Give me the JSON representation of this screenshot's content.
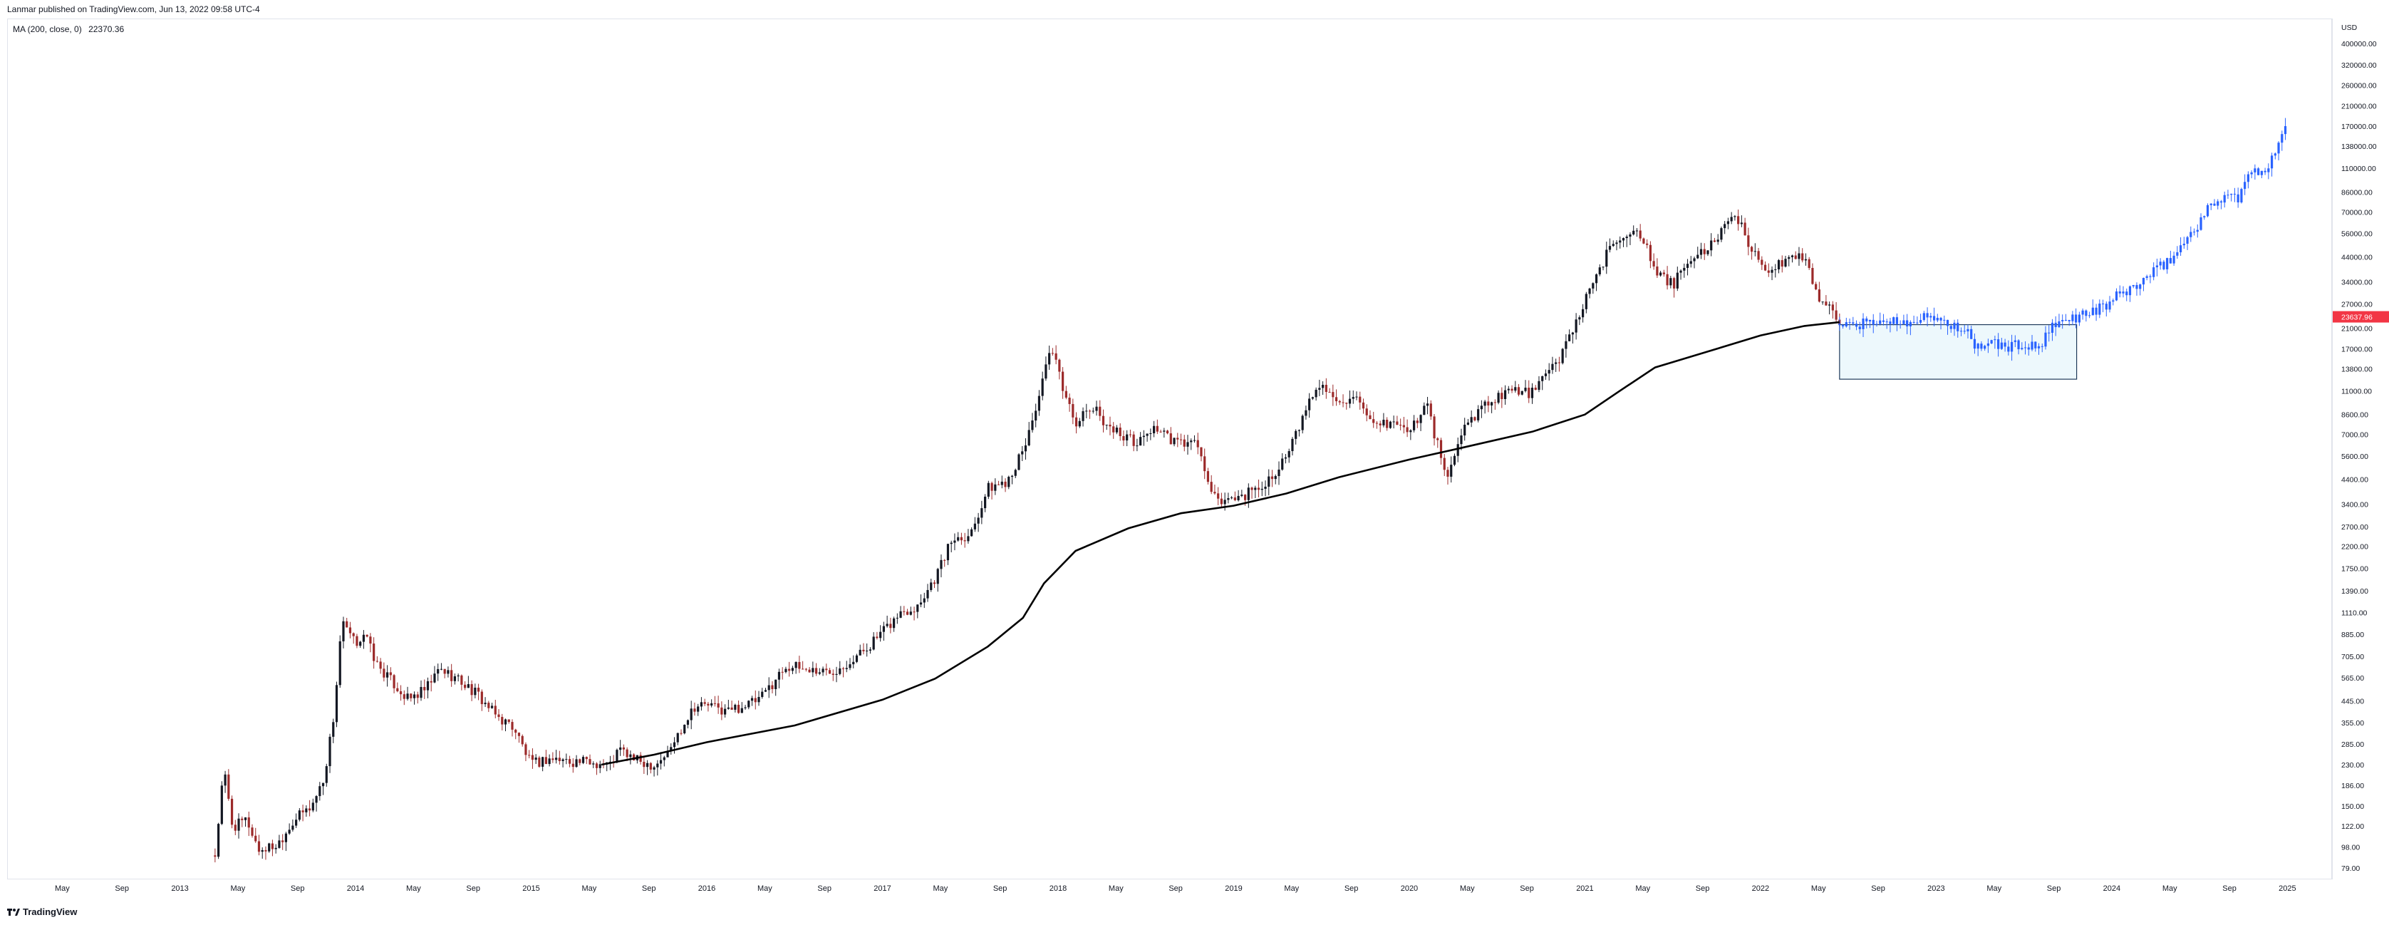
{
  "header": {
    "published": "Lanmar published on TradingView.com, Jun 13, 2022 09:58 UTC-4"
  },
  "legend": {
    "text": "MA (200, close, 0)",
    "value": "22370.36"
  },
  "footer": {
    "brand": "TradingView"
  },
  "price_badge": {
    "value": "23637.96",
    "color": "#f23645"
  },
  "colors": {
    "up": "#131722",
    "down": "#9c2a2a",
    "projection": "#2962ff",
    "ma": "#000000",
    "box_fill": "#e3f4fb",
    "box_stroke": "#1f3a5a"
  },
  "chart_data": {
    "type": "candlestick",
    "title": "",
    "y_scale": "log",
    "y_unit": "USD",
    "ylim": [
      75,
      470000
    ],
    "x_range": [
      "2012-04",
      "2025-03"
    ],
    "price_ticks": [
      79,
      98,
      122,
      150,
      186,
      230,
      285,
      355,
      445,
      565,
      705,
      885,
      1110,
      1390,
      1750,
      2200,
      2700,
      3400,
      4400,
      5600,
      7000,
      8600,
      11000,
      13800,
      17000,
      21000,
      27000,
      34000,
      44000,
      56000,
      70000,
      86000,
      110000,
      138000,
      170000,
      210000,
      260000,
      320000,
      400000
    ],
    "price_tick_labels": [
      "79.00",
      "98.00",
      "122.00",
      "150.00",
      "186.00",
      "230.00",
      "285.00",
      "355.00",
      "445.00",
      "565.00",
      "705.00",
      "885.00",
      "1110.00",
      "1390.00",
      "1750.00",
      "2200.00",
      "2700.00",
      "3400.00",
      "4400.00",
      "5600.00",
      "7000.00",
      "8600.00",
      "11000.00",
      "13800.00",
      "17000.00",
      "21000.00",
      "27000.00",
      "34000.00",
      "44000.00",
      "56000.00",
      "70000.00",
      "86000.00",
      "110000.00",
      "138000.00",
      "170000.00",
      "210000.00",
      "260000.00",
      "320000.00",
      "400000.00"
    ],
    "time_ticks": [
      {
        "label": "May",
        "t": 2012.33
      },
      {
        "label": "Sep",
        "t": 2012.67
      },
      {
        "label": "2013",
        "t": 2013.0
      },
      {
        "label": "May",
        "t": 2013.33
      },
      {
        "label": "Sep",
        "t": 2013.67
      },
      {
        "label": "2014",
        "t": 2014.0
      },
      {
        "label": "May",
        "t": 2014.33
      },
      {
        "label": "Sep",
        "t": 2014.67
      },
      {
        "label": "2015",
        "t": 2015.0
      },
      {
        "label": "May",
        "t": 2015.33
      },
      {
        "label": "Sep",
        "t": 2015.67
      },
      {
        "label": "2016",
        "t": 2016.0
      },
      {
        "label": "May",
        "t": 2016.33
      },
      {
        "label": "Sep",
        "t": 2016.67
      },
      {
        "label": "2017",
        "t": 2017.0
      },
      {
        "label": "May",
        "t": 2017.33
      },
      {
        "label": "Sep",
        "t": 2017.67
      },
      {
        "label": "2018",
        "t": 2018.0
      },
      {
        "label": "May",
        "t": 2018.33
      },
      {
        "label": "Sep",
        "t": 2018.67
      },
      {
        "label": "2019",
        "t": 2019.0
      },
      {
        "label": "May",
        "t": 2019.33
      },
      {
        "label": "Sep",
        "t": 2019.67
      },
      {
        "label": "2020",
        "t": 2020.0
      },
      {
        "label": "May",
        "t": 2020.33
      },
      {
        "label": "Sep",
        "t": 2020.67
      },
      {
        "label": "2021",
        "t": 2021.0
      },
      {
        "label": "May",
        "t": 2021.33
      },
      {
        "label": "Sep",
        "t": 2021.67
      },
      {
        "label": "2022",
        "t": 2022.0
      },
      {
        "label": "May",
        "t": 2022.33
      },
      {
        "label": "Sep",
        "t": 2022.67
      },
      {
        "label": "2023",
        "t": 2023.0
      },
      {
        "label": "May",
        "t": 2023.33
      },
      {
        "label": "Sep",
        "t": 2023.67
      },
      {
        "label": "2024",
        "t": 2024.0
      },
      {
        "label": "May",
        "t": 2024.33
      },
      {
        "label": "Sep",
        "t": 2024.67
      },
      {
        "label": "2025",
        "t": 2025.0
      }
    ],
    "price_path": [
      [
        2013.2,
        90
      ],
      [
        2013.25,
        220
      ],
      [
        2013.3,
        120
      ],
      [
        2013.38,
        130
      ],
      [
        2013.45,
        95
      ],
      [
        2013.55,
        100
      ],
      [
        2013.65,
        130
      ],
      [
        2013.75,
        150
      ],
      [
        2013.82,
        200
      ],
      [
        2013.88,
        400
      ],
      [
        2013.92,
        1000
      ],
      [
        2014.0,
        800
      ],
      [
        2014.05,
        900
      ],
      [
        2014.12,
        650
      ],
      [
        2014.2,
        550
      ],
      [
        2014.3,
        450
      ],
      [
        2014.4,
        500
      ],
      [
        2014.48,
        620
      ],
      [
        2014.58,
        560
      ],
      [
        2014.7,
        470
      ],
      [
        2014.8,
        380
      ],
      [
        2014.9,
        340
      ],
      [
        2015.0,
        230
      ],
      [
        2015.1,
        245
      ],
      [
        2015.2,
        240
      ],
      [
        2015.35,
        235
      ],
      [
        2015.45,
        230
      ],
      [
        2015.5,
        270
      ],
      [
        2015.6,
        240
      ],
      [
        2015.7,
        230
      ],
      [
        2015.78,
        260
      ],
      [
        2015.85,
        330
      ],
      [
        2015.92,
        420
      ],
      [
        2016.0,
        430
      ],
      [
        2016.1,
        400
      ],
      [
        2016.2,
        420
      ],
      [
        2016.3,
        450
      ],
      [
        2016.45,
        640
      ],
      [
        2016.55,
        620
      ],
      [
        2016.7,
        600
      ],
      [
        2016.85,
        700
      ],
      [
        2017.0,
        900
      ],
      [
        2017.1,
        1100
      ],
      [
        2017.2,
        1200
      ],
      [
        2017.3,
        1600
      ],
      [
        2017.4,
        2400
      ],
      [
        2017.5,
        2500
      ],
      [
        2017.6,
        4000
      ],
      [
        2017.7,
        4300
      ],
      [
        2017.8,
        5800
      ],
      [
        2017.9,
        11000
      ],
      [
        2017.96,
        17000
      ],
      [
        2018.0,
        13500
      ],
      [
        2018.05,
        10000
      ],
      [
        2018.1,
        8000
      ],
      [
        2018.2,
        9200
      ],
      [
        2018.3,
        7500
      ],
      [
        2018.45,
        6400
      ],
      [
        2018.55,
        7600
      ],
      [
        2018.65,
        6500
      ],
      [
        2018.8,
        6300
      ],
      [
        2018.85,
        4200
      ],
      [
        2018.9,
        3500
      ],
      [
        2019.0,
        3600
      ],
      [
        2019.15,
        4000
      ],
      [
        2019.3,
        5500
      ],
      [
        2019.4,
        8500
      ],
      [
        2019.48,
        12000
      ],
      [
        2019.55,
        10500
      ],
      [
        2019.7,
        9800
      ],
      [
        2019.8,
        7400
      ],
      [
        2019.9,
        8000
      ],
      [
        2020.0,
        7200
      ],
      [
        2020.1,
        9600
      ],
      [
        2020.18,
        5500
      ],
      [
        2020.22,
        4500
      ],
      [
        2020.3,
        7200
      ],
      [
        2020.4,
        9200
      ],
      [
        2020.55,
        11000
      ],
      [
        2020.7,
        10800
      ],
      [
        2020.85,
        15000
      ],
      [
        2020.95,
        23000
      ],
      [
        2021.05,
        33000
      ],
      [
        2021.15,
        50000
      ],
      [
        2021.25,
        58000
      ],
      [
        2021.32,
        56000
      ],
      [
        2021.4,
        37000
      ],
      [
        2021.5,
        33000
      ],
      [
        2021.6,
        42000
      ],
      [
        2021.7,
        48000
      ],
      [
        2021.8,
        61000
      ],
      [
        2021.88,
        65000
      ],
      [
        2021.95,
        47000
      ],
      [
        2022.05,
        38000
      ],
      [
        2022.15,
        42000
      ],
      [
        2022.25,
        45000
      ],
      [
        2022.32,
        30000
      ],
      [
        2022.4,
        26000
      ],
      [
        2022.45,
        22000
      ]
    ],
    "projection_path": [
      [
        2022.45,
        22000
      ],
      [
        2022.5,
        21500
      ],
      [
        2022.6,
        22000
      ],
      [
        2022.7,
        22800
      ],
      [
        2022.8,
        22500
      ],
      [
        2022.9,
        23200
      ],
      [
        2023.0,
        23500
      ],
      [
        2023.1,
        21500
      ],
      [
        2023.18,
        20000
      ],
      [
        2023.22,
        16500
      ],
      [
        2023.28,
        18300
      ],
      [
        2023.4,
        17300
      ],
      [
        2023.5,
        17800
      ],
      [
        2023.58,
        16900
      ],
      [
        2023.66,
        21000
      ],
      [
        2023.75,
        23000
      ],
      [
        2023.85,
        24500
      ],
      [
        2023.95,
        26000
      ],
      [
        2024.05,
        30000
      ],
      [
        2024.15,
        33000
      ],
      [
        2024.25,
        38000
      ],
      [
        2024.35,
        44000
      ],
      [
        2024.45,
        56000
      ],
      [
        2024.55,
        72000
      ],
      [
        2024.65,
        85000
      ],
      [
        2024.72,
        80000
      ],
      [
        2024.8,
        110000
      ],
      [
        2024.86,
        100000
      ],
      [
        2024.92,
        130000
      ],
      [
        2024.97,
        160000
      ],
      [
        2025.0,
        180000
      ]
    ],
    "ma_200": [
      [
        2015.4,
        230
      ],
      [
        2015.7,
        255
      ],
      [
        2016.0,
        290
      ],
      [
        2016.5,
        345
      ],
      [
        2017.0,
        450
      ],
      [
        2017.3,
        560
      ],
      [
        2017.6,
        780
      ],
      [
        2017.8,
        1050
      ],
      [
        2017.92,
        1500
      ],
      [
        2018.1,
        2100
      ],
      [
        2018.4,
        2650
      ],
      [
        2018.7,
        3100
      ],
      [
        2019.0,
        3350
      ],
      [
        2019.3,
        3800
      ],
      [
        2019.6,
        4500
      ],
      [
        2020.0,
        5400
      ],
      [
        2020.3,
        6100
      ],
      [
        2020.7,
        7200
      ],
      [
        2021.0,
        8600
      ],
      [
        2021.2,
        11000
      ],
      [
        2021.4,
        14000
      ],
      [
        2021.7,
        16500
      ],
      [
        2022.0,
        19500
      ],
      [
        2022.25,
        21500
      ],
      [
        2022.45,
        22370
      ]
    ],
    "annotation_box": {
      "t_start": 2022.45,
      "t_end": 2023.8,
      "price_low": 12400,
      "price_high": 21800
    }
  }
}
